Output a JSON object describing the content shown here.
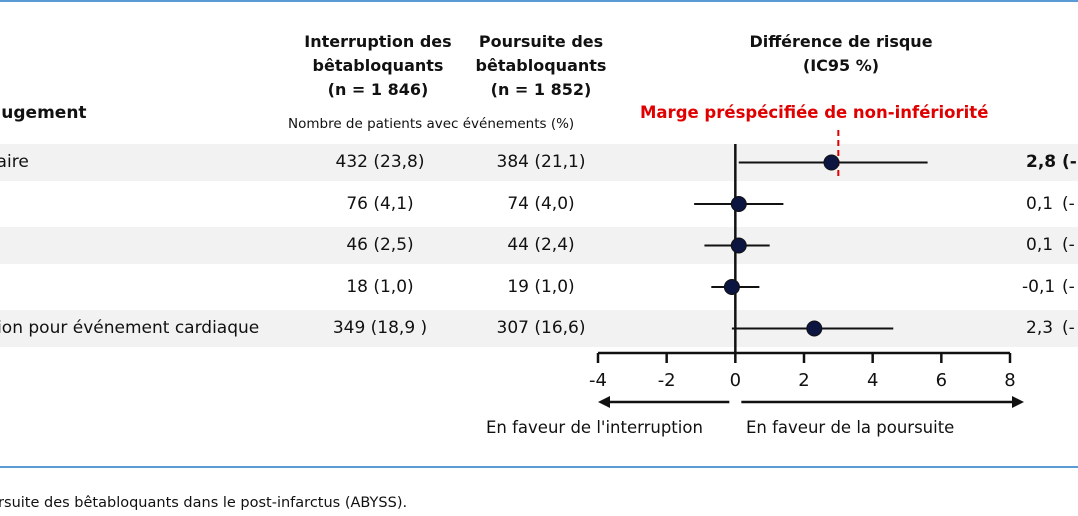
{
  "colors": {
    "rule": "#5b9bd5",
    "band": "#f2f2f2",
    "margin": "#e00000",
    "ink": "#111111"
  },
  "headers": {
    "interruption": [
      "Interruption des",
      "bêtabloquants",
      "(n = 1 846)"
    ],
    "continuation": [
      "Poursuite des",
      "bêtabloquants",
      "(n = 1 852)"
    ],
    "risk_difference": [
      "Différence de risque",
      "(IC95 %)"
    ],
    "outcome_column": "e jugement",
    "events_note": "Nombre de patients avec événements (%)"
  },
  "chart_data": {
    "type": "forest",
    "x_ticks": [
      -4,
      -2,
      0,
      2,
      4,
      6,
      8
    ],
    "xlim": [
      -4,
      8
    ],
    "noninferiority_margin": 3,
    "margin_label": "Marge préspécifiée de non-infériorité",
    "favors_left": "En faveur de l'interruption",
    "favors_right": "En faveur de la poursuite",
    "rows": [
      {
        "label": "maire",
        "interruption": "432 (23,8)",
        "continuation": "384 (21,1)",
        "estimate": 2.8,
        "ci_low": 0.1,
        "ci_high": 5.6,
        "estimate_text": "2,8",
        "ci_text": "(-",
        "bold": true
      },
      {
        "label": "",
        "interruption": "76 (4,1)",
        "continuation": "74 (4,0)",
        "estimate": 0.1,
        "ci_low": -1.2,
        "ci_high": 1.4,
        "estimate_text": "0,1",
        "ci_text": "(-",
        "bold": false
      },
      {
        "label": "",
        "interruption": "46 (2,5)",
        "continuation": "44 (2,4)",
        "estimate": 0.1,
        "ci_low": -0.9,
        "ci_high": 1.0,
        "estimate_text": "0,1",
        "ci_text": "(-",
        "bold": false
      },
      {
        "label": "",
        "interruption": "18 (1,0)",
        "continuation": "19 (1,0)",
        "estimate": -0.1,
        "ci_low": -0.7,
        "ci_high": 0.7,
        "estimate_text": "-0,1",
        "ci_text": "(-",
        "bold": false
      },
      {
        "label": "ation pour événement cardiaque",
        "interruption": "349 (18,9  )",
        "continuation": "307 (16,6)",
        "estimate": 2.3,
        "ci_low": -0.1,
        "ci_high": 4.6,
        "estimate_text": "2,3",
        "ci_text": "(-",
        "bold": false
      }
    ]
  },
  "caption": "oursuite des bêtabloquants dans le post-infarctus (ABYSS)."
}
